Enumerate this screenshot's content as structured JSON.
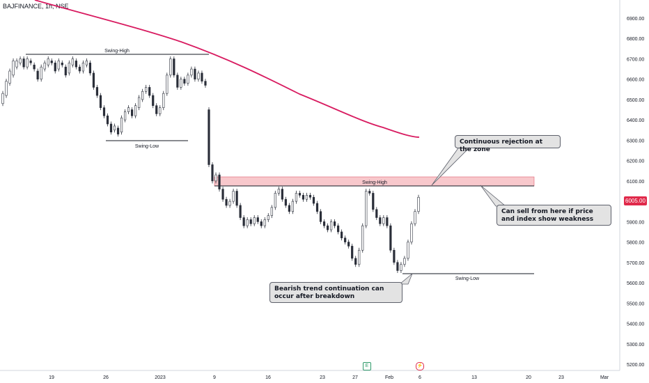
{
  "header": {
    "symbol": "BAJFINANCE, 1h, NSE"
  },
  "chart_data": {
    "type": "candlestick",
    "y_axis": {
      "ticks": [
        6900,
        6800,
        6700,
        6600,
        6500,
        6400,
        6300,
        6200,
        6100,
        6000,
        5900,
        5800,
        5700,
        5600,
        5500,
        5400,
        5300,
        5200
      ],
      "range": [
        5180,
        6960
      ]
    },
    "x_axis": {
      "ticks": [
        "19",
        "26",
        "2023",
        "9",
        "16",
        "23",
        "27",
        "Feb",
        "6",
        "13",
        "20",
        "23",
        "Mar"
      ]
    },
    "current_price": "6005.00",
    "moving_average_color": "#d81b60",
    "annotations": {
      "swing_high_top": "Swing-High",
      "swing_low_left": "Swing-Low",
      "swing_high_zone": "Swing-High",
      "swing_low_right": "Swing-Low",
      "callout_rejection": "Continuous rejection at the zone",
      "callout_sell": "Can sell from here if price and index show weakness",
      "callout_bearish": "Bearish trend continuation can occur after breakdown"
    },
    "levels": {
      "swing_high_top": 6720,
      "swing_low_left": 6300,
      "zone_low": 6075,
      "zone_high": 6120,
      "swing_low_right": 5645
    },
    "colors": {
      "up": "#26a69a",
      "down": "#131722",
      "candle": "#2a2e39",
      "zone": "#f8c8cc",
      "zone_border": "#e06070"
    },
    "price_path": [
      [
        6480,
        6530
      ],
      [
        6520,
        6590
      ],
      [
        6580,
        6640
      ],
      [
        6620,
        6690
      ],
      [
        6660,
        6690
      ],
      [
        6680,
        6700
      ],
      [
        6700,
        6660
      ],
      [
        6660,
        6700
      ],
      [
        6690,
        6680
      ],
      [
        6670,
        6650
      ],
      [
        6640,
        6600
      ],
      [
        6600,
        6660
      ],
      [
        6650,
        6680
      ],
      [
        6670,
        6700
      ],
      [
        6690,
        6680
      ],
      [
        6680,
        6640
      ],
      [
        6650,
        6690
      ],
      [
        6680,
        6670
      ],
      [
        6660,
        6620
      ],
      [
        6630,
        6680
      ],
      [
        6670,
        6700
      ],
      [
        6690,
        6660
      ],
      [
        6660,
        6640
      ],
      [
        6640,
        6680
      ],
      [
        6670,
        6690
      ],
      [
        6680,
        6630
      ],
      [
        6630,
        6560
      ],
      [
        6560,
        6520
      ],
      [
        6520,
        6460
      ],
      [
        6460,
        6420
      ],
      [
        6420,
        6380
      ],
      [
        6380,
        6340
      ],
      [
        6350,
        6370
      ],
      [
        6360,
        6330
      ],
      [
        6340,
        6410
      ],
      [
        6400,
        6440
      ],
      [
        6440,
        6460
      ],
      [
        6450,
        6420
      ],
      [
        6420,
        6470
      ],
      [
        6460,
        6510
      ],
      [
        6500,
        6540
      ],
      [
        6540,
        6560
      ],
      [
        6560,
        6520
      ],
      [
        6520,
        6470
      ],
      [
        6470,
        6430
      ],
      [
        6430,
        6460
      ],
      [
        6460,
        6530
      ],
      [
        6530,
        6620
      ],
      [
        6620,
        6700
      ],
      [
        6700,
        6620
      ],
      [
        6620,
        6560
      ],
      [
        6560,
        6600
      ],
      [
        6600,
        6580
      ],
      [
        6580,
        6620
      ],
      [
        6620,
        6650
      ],
      [
        6650,
        6600
      ],
      [
        6600,
        6630
      ],
      [
        6630,
        6590
      ],
      [
        6590,
        6570
      ],
      [
        6450,
        6180
      ],
      [
        6180,
        6100
      ],
      [
        6100,
        6130
      ],
      [
        6130,
        6060
      ],
      [
        6060,
        6010
      ],
      [
        6010,
        5980
      ],
      [
        5980,
        6000
      ],
      [
        6000,
        6050
      ],
      [
        6050,
        5980
      ],
      [
        5980,
        5920
      ],
      [
        5920,
        5880
      ],
      [
        5880,
        5910
      ],
      [
        5910,
        5890
      ],
      [
        5890,
        5920
      ],
      [
        5920,
        5900
      ],
      [
        5900,
        5880
      ],
      [
        5880,
        5910
      ],
      [
        5910,
        5930
      ],
      [
        5930,
        5970
      ],
      [
        5970,
        6040
      ],
      [
        6040,
        6060
      ],
      [
        6060,
        6010
      ],
      [
        6010,
        5980
      ],
      [
        5980,
        5950
      ],
      [
        5950,
        6000
      ],
      [
        6000,
        6040
      ],
      [
        6040,
        6030
      ],
      [
        6030,
        6010
      ],
      [
        6010,
        6030
      ],
      [
        6030,
        6020
      ],
      [
        6020,
        5990
      ],
      [
        5990,
        5950
      ],
      [
        5950,
        5900
      ],
      [
        5900,
        5880
      ],
      [
        5880,
        5860
      ],
      [
        5860,
        5900
      ],
      [
        5900,
        5880
      ],
      [
        5880,
        5850
      ],
      [
        5850,
        5820
      ],
      [
        5820,
        5800
      ],
      [
        5800,
        5780
      ],
      [
        5780,
        5720
      ],
      [
        5720,
        5690
      ],
      [
        5690,
        5760
      ],
      [
        5760,
        5880
      ],
      [
        5880,
        6050
      ],
      [
        6050,
        6040
      ],
      [
        6040,
        5960
      ],
      [
        5960,
        5920
      ],
      [
        5920,
        5890
      ],
      [
        5890,
        5920
      ],
      [
        5920,
        5880
      ],
      [
        5880,
        5760
      ],
      [
        5760,
        5700
      ],
      [
        5700,
        5660
      ],
      [
        5660,
        5690
      ],
      [
        5690,
        5720
      ],
      [
        5720,
        5800
      ],
      [
        5800,
        5890
      ],
      [
        5890,
        5950
      ],
      [
        5950,
        6020
      ]
    ]
  }
}
